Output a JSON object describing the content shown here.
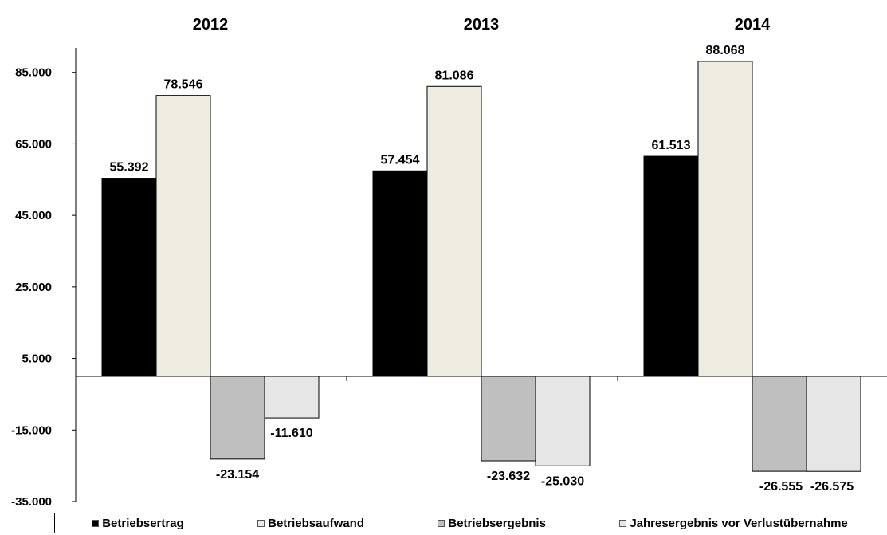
{
  "chart_data": {
    "type": "bar",
    "categories": [
      "2012",
      "2013",
      "2014"
    ],
    "series": [
      {
        "name": "Betriebsertrag",
        "values": [
          55392,
          57454,
          61513
        ],
        "labels": [
          "55.392",
          "57.454",
          "61.513"
        ],
        "color": "#000000"
      },
      {
        "name": "Betriebsaufwand",
        "values": [
          78546,
          81086,
          88068
        ],
        "labels": [
          "78.546",
          "81.086",
          "88.068"
        ],
        "color": "#eeece1"
      },
      {
        "name": "Betriebsergebnis",
        "values": [
          -23154,
          -23632,
          -26555
        ],
        "labels": [
          "-23.154",
          "-23.632",
          "-26.555"
        ],
        "color": "#bfbfbf"
      },
      {
        "name": "Jahresergebnis vor Verlustübernahme",
        "values": [
          -11610,
          -25030,
          -26575
        ],
        "labels": [
          "-11.610",
          "-25.030",
          "-26.575"
        ],
        "color": "#e6e6e6"
      }
    ],
    "yticks": [
      85000,
      65000,
      45000,
      25000,
      5000,
      -15000,
      -35000
    ],
    "ytick_labels": [
      "85.000",
      "65.000",
      "45.000",
      "25.000",
      "5.000",
      "-15.000",
      "-35.000"
    ],
    "ylim": [
      -35000,
      96000
    ],
    "grid": false,
    "legend_position": "bottom",
    "title": "",
    "xlabel": "",
    "ylabel": ""
  }
}
